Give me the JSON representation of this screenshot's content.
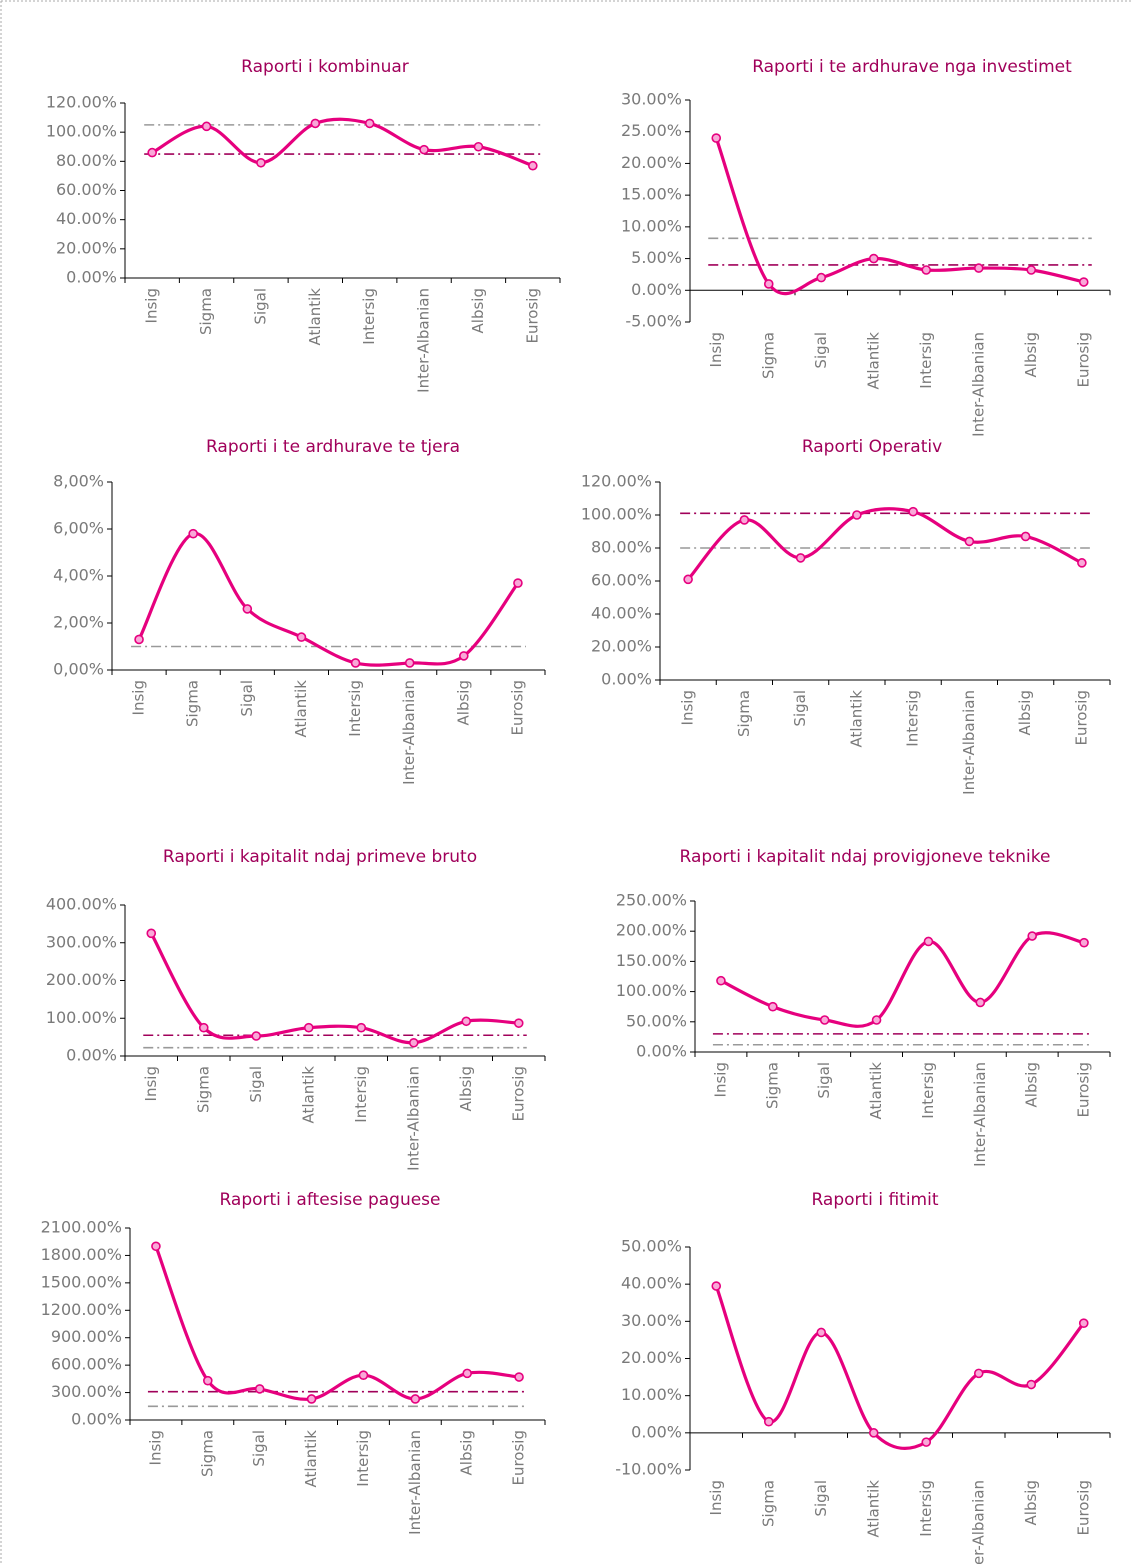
{
  "chart_data": [
    {
      "type": "line",
      "title": "Raporti i kombinuar",
      "color": "#e6007e",
      "categories": [
        "Insig",
        "Sigma",
        "Sigal",
        "Atlantik",
        "Intersig",
        "Inter-Albanian",
        "Albsig",
        "Eurosig"
      ],
      "values": [
        86,
        104,
        79,
        106,
        106,
        88,
        90,
        77
      ],
      "reference_lines": [
        {
          "value": 105,
          "color": "#999999"
        },
        {
          "value": 85,
          "color": "#a0005a"
        }
      ],
      "ylim": [
        0,
        120
      ],
      "yticks": [
        {
          "value": 0,
          "label": "0.00%"
        },
        {
          "value": 20,
          "label": "20.00%"
        },
        {
          "value": 40,
          "label": "40.00%"
        },
        {
          "value": 60,
          "label": "60.00%"
        },
        {
          "value": 80,
          "label": "80.00%"
        },
        {
          "value": 100,
          "label": "100.00%"
        },
        {
          "value": 120,
          "label": "120.00%"
        }
      ]
    },
    {
      "type": "line",
      "title": "Raporti i te ardhurave nga investimet",
      "color": "#e6007e",
      "categories": [
        "Insig",
        "Sigma",
        "Sigal",
        "Atlantik",
        "Intersig",
        "Inter-Albanian",
        "Albsig",
        "Eurosig"
      ],
      "values": [
        24,
        1,
        2,
        5,
        3.2,
        3.5,
        3.2,
        1.3
      ],
      "reference_lines": [
        {
          "value": 8.2,
          "color": "#999999"
        },
        {
          "value": 4,
          "color": "#a0005a"
        }
      ],
      "ylim": [
        -5,
        30
      ],
      "yticks": [
        {
          "value": -5,
          "label": "-5.00%"
        },
        {
          "value": 0,
          "label": "0.00%"
        },
        {
          "value": 5,
          "label": "5.00%"
        },
        {
          "value": 10,
          "label": "10.00%"
        },
        {
          "value": 15,
          "label": "15.00%"
        },
        {
          "value": 20,
          "label": "20.00%"
        },
        {
          "value": 25,
          "label": "25.00%"
        },
        {
          "value": 30,
          "label": "30.00%"
        }
      ]
    },
    {
      "type": "line",
      "title": "Raporti i te ardhurave te tjera",
      "color": "#e6007e",
      "categories": [
        "Insig",
        "Sigma",
        "Sigal",
        "Atlantik",
        "Intersig",
        "Inter-Albanian",
        "Albsig",
        "Eurosig"
      ],
      "values": [
        1.3,
        5.8,
        2.6,
        1.4,
        0.3,
        0.3,
        0.6,
        3.7
      ],
      "reference_lines": [
        {
          "value": 1.0,
          "color": "#999999"
        }
      ],
      "ylim": [
        0,
        8
      ],
      "yticks": [
        {
          "value": 0,
          "label": "0,00%"
        },
        {
          "value": 2,
          "label": "2,00%"
        },
        {
          "value": 4,
          "label": "4,00%"
        },
        {
          "value": 6,
          "label": "6,00%"
        },
        {
          "value": 8,
          "label": "8,00%"
        }
      ]
    },
    {
      "type": "line",
      "title": "Raporti Operativ",
      "color": "#e6007e",
      "categories": [
        "Insig",
        "Sigma",
        "Sigal",
        "Atlantik",
        "Intersig",
        "Inter-Albanian",
        "Albsig",
        "Eurosig"
      ],
      "values": [
        61,
        97,
        74,
        100,
        102,
        84,
        87,
        71
      ],
      "reference_lines": [
        {
          "value": 101,
          "color": "#a0005a"
        },
        {
          "value": 80,
          "color": "#999999"
        }
      ],
      "ylim": [
        0,
        120
      ],
      "yticks": [
        {
          "value": 0,
          "label": "0.00%"
        },
        {
          "value": 20,
          "label": "20.00%"
        },
        {
          "value": 40,
          "label": "40.00%"
        },
        {
          "value": 60,
          "label": "60.00%"
        },
        {
          "value": 80,
          "label": "80.00%"
        },
        {
          "value": 100,
          "label": "100.00%"
        },
        {
          "value": 120,
          "label": "120.00%"
        }
      ]
    },
    {
      "type": "line",
      "title": "Raporti i kapitalit ndaj primeve bruto",
      "color": "#e6007e",
      "categories": [
        "Insig",
        "Sigma",
        "Sigal",
        "Atlantik",
        "Intersig",
        "Inter-Albanian",
        "Albsig",
        "Eurosig"
      ],
      "values": [
        325,
        75,
        53,
        75,
        75,
        35,
        92,
        87
      ],
      "reference_lines": [
        {
          "value": 55,
          "color": "#a0005a"
        },
        {
          "value": 22,
          "color": "#999999"
        }
      ],
      "ylim": [
        0,
        400
      ],
      "yticks": [
        {
          "value": 0,
          "label": "0.00%"
        },
        {
          "value": 100,
          "label": "100.00%"
        },
        {
          "value": 200,
          "label": "200.00%"
        },
        {
          "value": 300,
          "label": "300.00%"
        },
        {
          "value": 400,
          "label": "400.00%"
        }
      ]
    },
    {
      "type": "line",
      "title": "Raporti i kapitalit ndaj provigjoneve teknike",
      "color": "#e6007e",
      "categories": [
        "Insig",
        "Sigma",
        "Sigal",
        "Atlantik",
        "Intersig",
        "Inter-Albanian",
        "Albsig",
        "Eurosig"
      ],
      "values": [
        118,
        75,
        53,
        53,
        183,
        82,
        192,
        181
      ],
      "reference_lines": [
        {
          "value": 30,
          "color": "#a0005a"
        },
        {
          "value": 12,
          "color": "#999999"
        }
      ],
      "ylim": [
        0,
        250
      ],
      "yticks": [
        {
          "value": 0,
          "label": "0.00%"
        },
        {
          "value": 50,
          "label": "50.00%"
        },
        {
          "value": 100,
          "label": "100.00%"
        },
        {
          "value": 150,
          "label": "150.00%"
        },
        {
          "value": 200,
          "label": "200.00%"
        },
        {
          "value": 250,
          "label": "250.00%"
        }
      ]
    },
    {
      "type": "line",
      "title": "Raporti i aftesise paguese",
      "color": "#e6007e",
      "categories": [
        "Insig",
        "Sigma",
        "Sigal",
        "Atlantik",
        "Intersig",
        "Inter-Albanian",
        "Albsig",
        "Eurosig"
      ],
      "values": [
        1900,
        430,
        340,
        230,
        490,
        230,
        510,
        470
      ],
      "reference_lines": [
        {
          "value": 310,
          "color": "#a0005a"
        },
        {
          "value": 150,
          "color": "#999999"
        }
      ],
      "ylim": [
        0,
        2100
      ],
      "yticks": [
        {
          "value": 0,
          "label": "0.00%"
        },
        {
          "value": 300,
          "label": "300.00%"
        },
        {
          "value": 600,
          "label": "600.00%"
        },
        {
          "value": 900,
          "label": "900.00%"
        },
        {
          "value": 1200,
          "label": "1200.00%"
        },
        {
          "value": 1500,
          "label": "1500.00%"
        },
        {
          "value": 1800,
          "label": "1800.00%"
        },
        {
          "value": 2100,
          "label": "2100.00%"
        }
      ]
    },
    {
      "type": "line",
      "title": "Raporti i fitimit",
      "color": "#e6007e",
      "categories": [
        "Insig",
        "Sigma",
        "Sigal",
        "Atlantik",
        "Intersig",
        "Inter-Albanian",
        "Albsig",
        "Eurosig"
      ],
      "values": [
        39.5,
        3,
        27,
        0,
        -2.5,
        16,
        13,
        29.5
      ],
      "reference_lines": [],
      "ylim": [
        -10,
        50
      ],
      "yticks": [
        {
          "value": -10,
          "label": "-10.00%"
        },
        {
          "value": 0,
          "label": "0.00%"
        },
        {
          "value": 10,
          "label": "10.00%"
        },
        {
          "value": 20,
          "label": "20.00%"
        },
        {
          "value": 30,
          "label": "30.00%"
        },
        {
          "value": 40,
          "label": "40.00%"
        },
        {
          "value": 50,
          "label": "50.00%"
        }
      ]
    }
  ]
}
